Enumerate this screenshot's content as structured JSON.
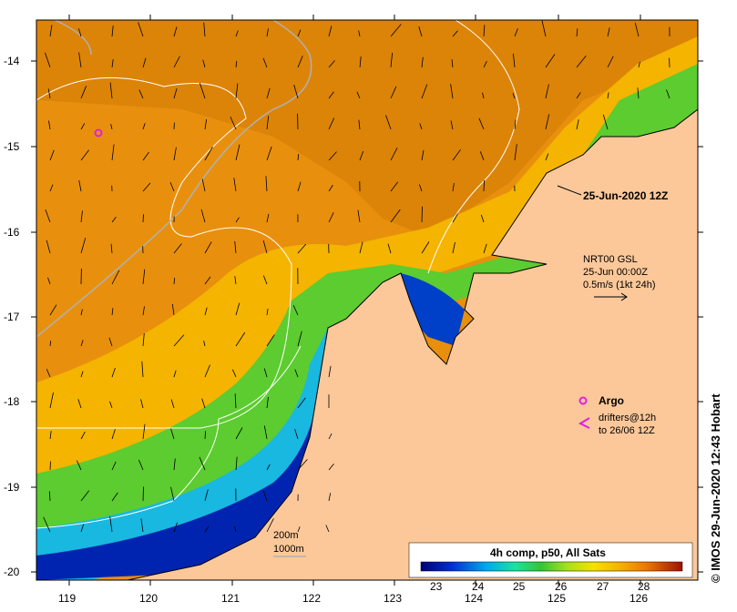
{
  "map": {
    "timestamp": "25-Jun-2020 12Z",
    "lon_ticks": [
      "119",
      "120",
      "121",
      "122",
      "123",
      "124",
      "125",
      "126"
    ],
    "lat_ticks": [
      "-14",
      "-15",
      "-16",
      "-17",
      "-18",
      "-19",
      "-20"
    ],
    "currents": {
      "line1": "NRT00 GSL",
      "line2": "25-Jun 00:00Z",
      "line3": "0.5m/s (1kt 24h)"
    },
    "legend": {
      "argo_label": "Argo",
      "drifters_line1": "drifters@12h",
      "drifters_line2": "to 26/06 12Z",
      "argo_color": "#e020e0"
    },
    "depth": {
      "contour_a": "200m",
      "contour_b": "1000m"
    },
    "colorbar": {
      "title": "4h comp, p50, All Sats",
      "ticks": [
        "23",
        "24",
        "25",
        "26",
        "27",
        "28"
      ]
    },
    "credit": "© IMOS 29-Jun-2020 12:43 Hobart",
    "colors": {
      "land": "#fcc899",
      "warm": "#e8900e",
      "mid": "#f4b400",
      "green": "#30c030",
      "cold": "#000090"
    }
  }
}
